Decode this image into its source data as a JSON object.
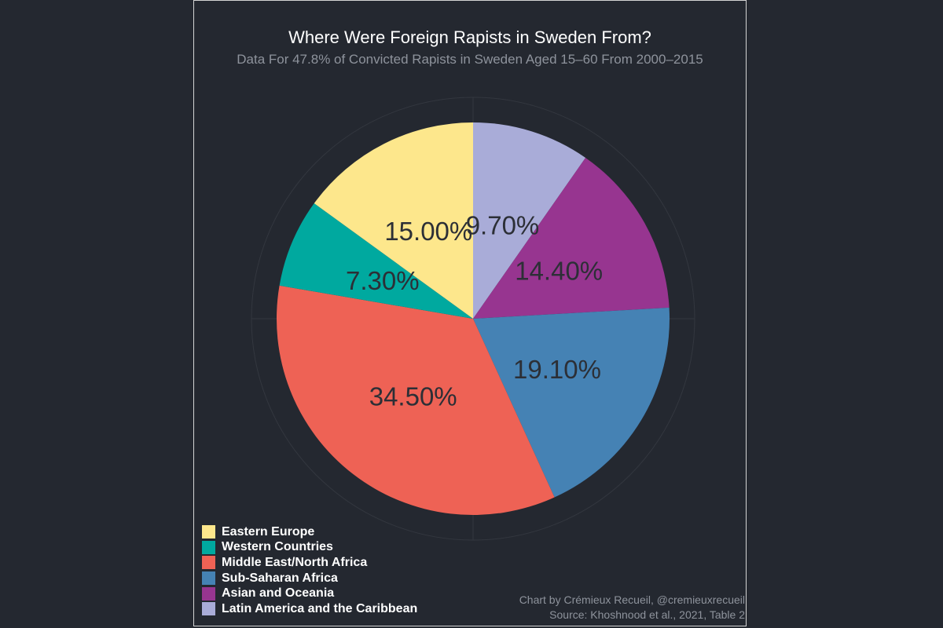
{
  "chart_data": {
    "type": "pie",
    "title": "Where Were Foreign Rapists in Sweden From?",
    "subtitle": "Data For 47.8% of Convicted Rapists in Sweden Aged 15–60 From 2000–2015",
    "direction": "clockwise from top",
    "slices": [
      {
        "name": "Latin America and the Caribbean",
        "value": 9.7,
        "label": "9.70%",
        "color": "#a9acd8"
      },
      {
        "name": "Asian and Oceania",
        "value": 14.4,
        "label": "14.40%",
        "color": "#973590"
      },
      {
        "name": "Sub-Saharan Africa",
        "value": 19.1,
        "label": "19.10%",
        "color": "#4582b4"
      },
      {
        "name": "Middle East/North Africa",
        "value": 34.5,
        "label": "34.50%",
        "color": "#ee6255"
      },
      {
        "name": "Western Countries",
        "value": 7.3,
        "label": "7.30%",
        "color": "#00a99f"
      },
      {
        "name": "Eastern Europe",
        "value": 15.0,
        "label": "15.00%",
        "color": "#fde78c"
      }
    ],
    "legend_order": [
      "Eastern Europe",
      "Western Countries",
      "Middle East/North Africa",
      "Sub-Saharan Africa",
      "Asian and Oceania",
      "Latin America and the Caribbean"
    ],
    "legend_position": "bottom-left"
  },
  "credits": {
    "line1": "Chart by Crémieux Recueil, @cremieuxrecueil",
    "line2": "Source: Khoshnood et al., 2021, Table 2"
  },
  "colors": {
    "background": "#242830",
    "grid": "#33373f",
    "label_text": "#2c2f36"
  }
}
